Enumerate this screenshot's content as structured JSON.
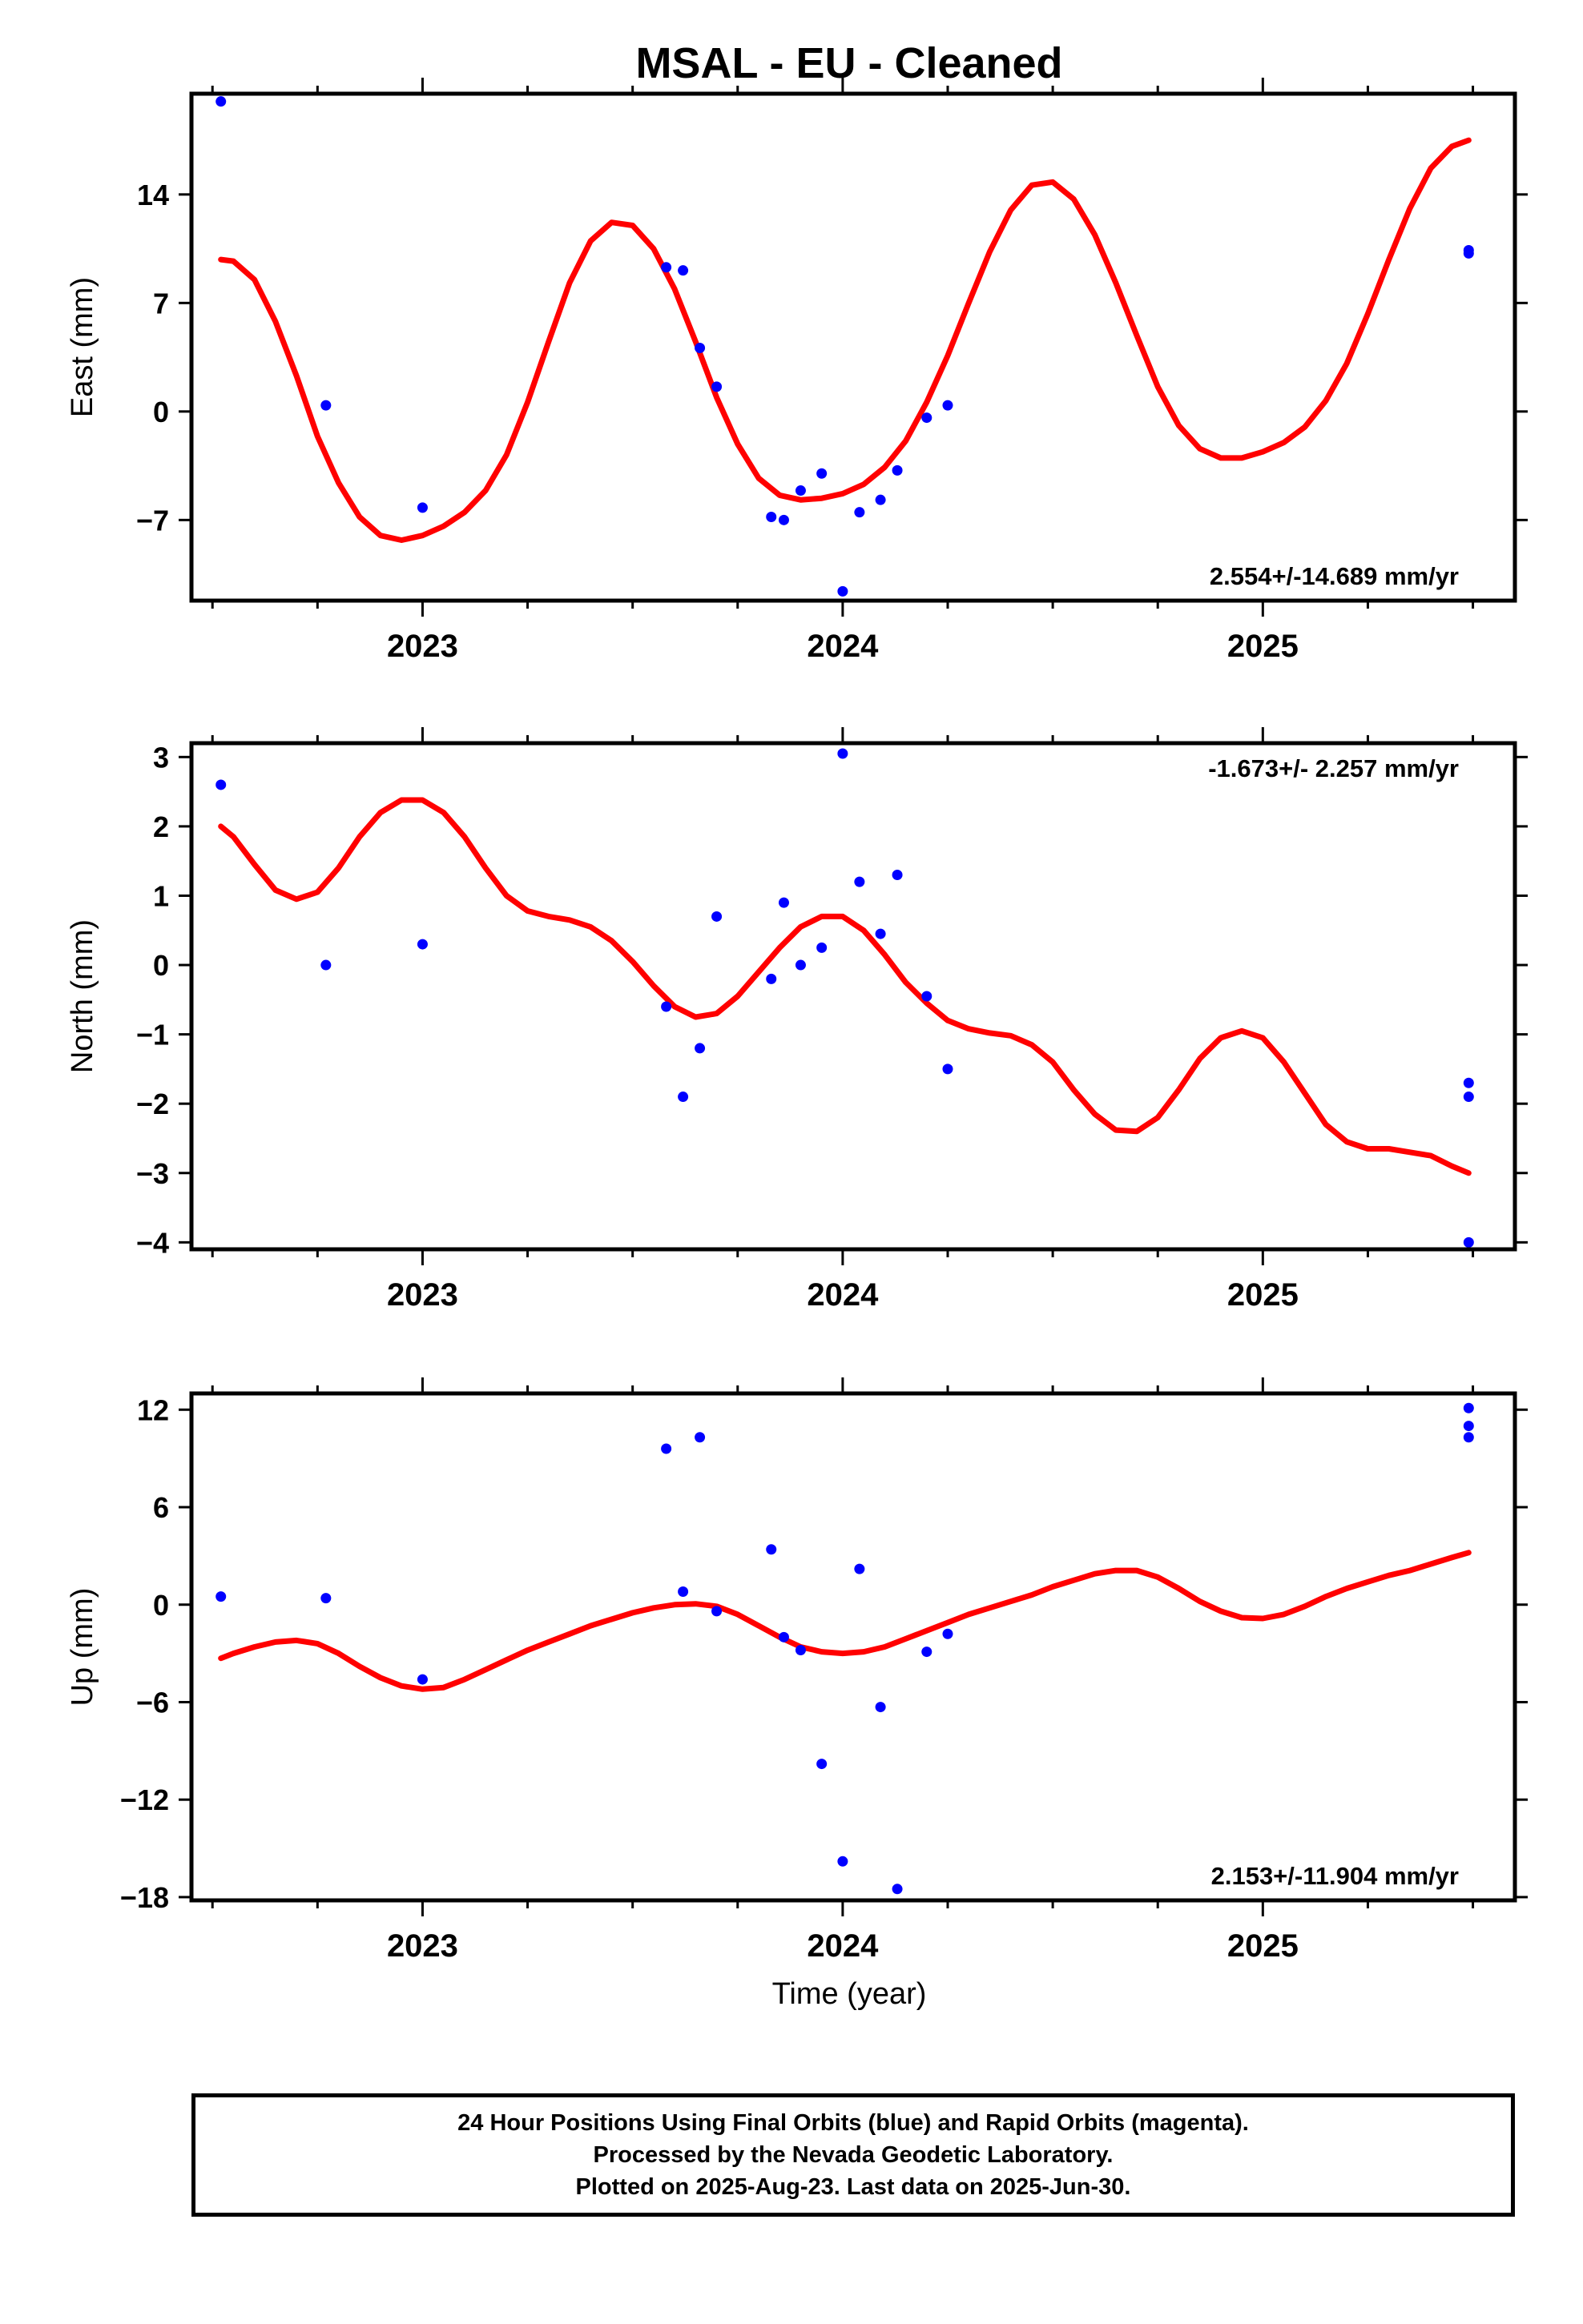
{
  "title": "MSAL  - EU - Cleaned",
  "xlabel": "Time (year)",
  "footer": {
    "line1": "24 Hour Positions Using Final Orbits (blue) and Rapid Orbits (magenta).",
    "line2": "Processed by the Nevada Geodetic Laboratory.",
    "line3": "Plotted on 2025-Aug-23. Last data on 2025-Jun-30."
  },
  "colors": {
    "points": "#0000ff",
    "model": "#ff0000",
    "axes": "#000000"
  },
  "chart_data": [
    {
      "type": "scatter",
      "ylabel": "East (mm)",
      "rate_label": "2.554+/-14.689 mm/yr",
      "xlim": [
        2022.45,
        2025.6
      ],
      "ylim": [
        -12.2,
        20.5
      ],
      "yticks": [
        -7,
        0,
        7,
        14
      ],
      "ytick_labels": [
        "−7",
        "0",
        "7",
        "14"
      ],
      "xticks": [
        2023,
        2024,
        2025
      ],
      "xtick_labels": [
        "2023",
        "2024",
        "2025"
      ],
      "points": [
        [
          2022.52,
          20.0
        ],
        [
          2022.77,
          0.4
        ],
        [
          2023.0,
          -6.2
        ],
        [
          2023.58,
          9.3
        ],
        [
          2023.62,
          9.1
        ],
        [
          2023.66,
          4.1
        ],
        [
          2023.7,
          1.6
        ],
        [
          2023.83,
          -6.8
        ],
        [
          2023.86,
          -7.0
        ],
        [
          2023.9,
          -5.1
        ],
        [
          2023.95,
          -4.0
        ],
        [
          2024.0,
          -11.6
        ],
        [
          2024.04,
          -6.5
        ],
        [
          2024.09,
          -5.7
        ],
        [
          2024.13,
          -3.8
        ],
        [
          2024.2,
          -0.4
        ],
        [
          2024.25,
          0.4
        ],
        [
          2025.49,
          10.2
        ],
        [
          2025.49,
          10.4
        ]
      ],
      "model": [
        [
          2022.52,
          9.8
        ],
        [
          2022.55,
          9.7
        ],
        [
          2022.6,
          8.5
        ],
        [
          2022.65,
          5.8
        ],
        [
          2022.7,
          2.3
        ],
        [
          2022.75,
          -1.6
        ],
        [
          2022.8,
          -4.6
        ],
        [
          2022.85,
          -6.8
        ],
        [
          2022.9,
          -8.0
        ],
        [
          2022.95,
          -8.3
        ],
        [
          2023.0,
          -8.0
        ],
        [
          2023.05,
          -7.4
        ],
        [
          2023.1,
          -6.5
        ],
        [
          2023.15,
          -5.1
        ],
        [
          2023.2,
          -2.8
        ],
        [
          2023.25,
          0.6
        ],
        [
          2023.3,
          4.5
        ],
        [
          2023.35,
          8.3
        ],
        [
          2023.4,
          11.0
        ],
        [
          2023.45,
          12.2
        ],
        [
          2023.5,
          12.0
        ],
        [
          2023.55,
          10.5
        ],
        [
          2023.6,
          7.9
        ],
        [
          2023.65,
          4.5
        ],
        [
          2023.7,
          0.9
        ],
        [
          2023.75,
          -2.1
        ],
        [
          2023.8,
          -4.3
        ],
        [
          2023.85,
          -5.4
        ],
        [
          2023.9,
          -5.7
        ],
        [
          2023.95,
          -5.6
        ],
        [
          2024.0,
          -5.3
        ],
        [
          2024.05,
          -4.7
        ],
        [
          2024.1,
          -3.6
        ],
        [
          2024.15,
          -1.9
        ],
        [
          2024.2,
          0.6
        ],
        [
          2024.25,
          3.6
        ],
        [
          2024.3,
          7.0
        ],
        [
          2024.35,
          10.3
        ],
        [
          2024.4,
          13.0
        ],
        [
          2024.45,
          14.6
        ],
        [
          2024.5,
          14.8
        ],
        [
          2024.55,
          13.7
        ],
        [
          2024.6,
          11.4
        ],
        [
          2024.65,
          8.3
        ],
        [
          2024.7,
          4.9
        ],
        [
          2024.75,
          1.6
        ],
        [
          2024.8,
          -0.9
        ],
        [
          2024.85,
          -2.4
        ],
        [
          2024.9,
          -3.0
        ],
        [
          2024.95,
          -3.0
        ],
        [
          2025.0,
          -2.6
        ],
        [
          2025.05,
          -2.0
        ],
        [
          2025.1,
          -1.0
        ],
        [
          2025.15,
          0.7
        ],
        [
          2025.2,
          3.1
        ],
        [
          2025.25,
          6.3
        ],
        [
          2025.3,
          9.8
        ],
        [
          2025.35,
          13.1
        ],
        [
          2025.4,
          15.7
        ],
        [
          2025.45,
          17.1
        ],
        [
          2025.49,
          17.5
        ]
      ]
    },
    {
      "type": "scatter",
      "ylabel": "North (mm)",
      "rate_label": "-1.673+/- 2.257 mm/yr",
      "xlim": [
        2022.45,
        2025.6
      ],
      "ylim": [
        -4.1,
        3.2
      ],
      "yticks": [
        -4,
        -3,
        -2,
        -1,
        0,
        1,
        2,
        3
      ],
      "ytick_labels": [
        "−4",
        "−3",
        "−2",
        "−1",
        "0",
        "1",
        "2",
        "3"
      ],
      "xticks": [
        2023,
        2024,
        2025
      ],
      "xtick_labels": [
        "2023",
        "2024",
        "2025"
      ],
      "points": [
        [
          2022.52,
          2.6
        ],
        [
          2022.77,
          0.0
        ],
        [
          2023.0,
          0.3
        ],
        [
          2023.58,
          -0.6
        ],
        [
          2023.62,
          -1.9
        ],
        [
          2023.66,
          -1.2
        ],
        [
          2023.7,
          0.7
        ],
        [
          2023.83,
          -0.2
        ],
        [
          2023.86,
          0.9
        ],
        [
          2023.9,
          0.0
        ],
        [
          2023.95,
          0.25
        ],
        [
          2024.0,
          3.05
        ],
        [
          2024.04,
          1.2
        ],
        [
          2024.09,
          0.45
        ],
        [
          2024.13,
          1.3
        ],
        [
          2024.2,
          -0.45
        ],
        [
          2024.25,
          -1.5
        ],
        [
          2025.49,
          -1.7
        ],
        [
          2025.49,
          -1.9
        ],
        [
          2025.49,
          -4.0
        ]
      ],
      "model": [
        [
          2022.52,
          2.0
        ],
        [
          2022.55,
          1.85
        ],
        [
          2022.6,
          1.45
        ],
        [
          2022.65,
          1.08
        ],
        [
          2022.7,
          0.95
        ],
        [
          2022.75,
          1.05
        ],
        [
          2022.8,
          1.4
        ],
        [
          2022.85,
          1.85
        ],
        [
          2022.9,
          2.2
        ],
        [
          2022.95,
          2.38
        ],
        [
          2023.0,
          2.38
        ],
        [
          2023.05,
          2.2
        ],
        [
          2023.1,
          1.85
        ],
        [
          2023.15,
          1.4
        ],
        [
          2023.2,
          1.0
        ],
        [
          2023.25,
          0.78
        ],
        [
          2023.3,
          0.7
        ],
        [
          2023.35,
          0.65
        ],
        [
          2023.4,
          0.55
        ],
        [
          2023.45,
          0.35
        ],
        [
          2023.5,
          0.05
        ],
        [
          2023.55,
          -0.3
        ],
        [
          2023.6,
          -0.6
        ],
        [
          2023.65,
          -0.75
        ],
        [
          2023.7,
          -0.7
        ],
        [
          2023.75,
          -0.45
        ],
        [
          2023.8,
          -0.1
        ],
        [
          2023.85,
          0.25
        ],
        [
          2023.9,
          0.55
        ],
        [
          2023.95,
          0.7
        ],
        [
          2024.0,
          0.7
        ],
        [
          2024.05,
          0.5
        ],
        [
          2024.1,
          0.15
        ],
        [
          2024.15,
          -0.25
        ],
        [
          2024.2,
          -0.55
        ],
        [
          2024.25,
          -0.8
        ],
        [
          2024.3,
          -0.92
        ],
        [
          2024.35,
          -0.98
        ],
        [
          2024.4,
          -1.02
        ],
        [
          2024.45,
          -1.15
        ],
        [
          2024.5,
          -1.4
        ],
        [
          2024.55,
          -1.8
        ],
        [
          2024.6,
          -2.15
        ],
        [
          2024.65,
          -2.38
        ],
        [
          2024.7,
          -2.4
        ],
        [
          2024.75,
          -2.2
        ],
        [
          2024.8,
          -1.8
        ],
        [
          2024.85,
          -1.35
        ],
        [
          2024.9,
          -1.05
        ],
        [
          2024.95,
          -0.95
        ],
        [
          2025.0,
          -1.05
        ],
        [
          2025.05,
          -1.4
        ],
        [
          2025.1,
          -1.85
        ],
        [
          2025.15,
          -2.3
        ],
        [
          2025.2,
          -2.55
        ],
        [
          2025.25,
          -2.65
        ],
        [
          2025.3,
          -2.65
        ],
        [
          2025.35,
          -2.7
        ],
        [
          2025.4,
          -2.75
        ],
        [
          2025.45,
          -2.9
        ],
        [
          2025.49,
          -3.0
        ]
      ]
    },
    {
      "type": "scatter",
      "ylabel": "Up (mm)",
      "rate_label": "2.153+/-11.904 mm/yr",
      "xlim": [
        2022.45,
        2025.6
      ],
      "ylim": [
        -18.2,
        13.0
      ],
      "yticks": [
        -18,
        -12,
        -6,
        0,
        6,
        12
      ],
      "ytick_labels": [
        "−18",
        "−12",
        "−6",
        "0",
        "6",
        "12"
      ],
      "xticks": [
        2023,
        2024,
        2025
      ],
      "xtick_labels": [
        "2023",
        "2024",
        "2025"
      ],
      "points": [
        [
          2022.52,
          0.5
        ],
        [
          2022.77,
          0.4
        ],
        [
          2023.0,
          -4.6
        ],
        [
          2023.58,
          9.6
        ],
        [
          2023.62,
          0.8
        ],
        [
          2023.66,
          10.3
        ],
        [
          2023.7,
          -0.4
        ],
        [
          2023.83,
          3.4
        ],
        [
          2023.86,
          -2.0
        ],
        [
          2023.9,
          -2.8
        ],
        [
          2023.95,
          -9.8
        ],
        [
          2024.0,
          -15.8
        ],
        [
          2024.04,
          2.2
        ],
        [
          2024.09,
          -6.3
        ],
        [
          2024.13,
          -17.5
        ],
        [
          2024.2,
          -2.9
        ],
        [
          2024.25,
          -1.8
        ],
        [
          2025.49,
          12.1
        ],
        [
          2025.49,
          11.0
        ],
        [
          2025.49,
          10.3
        ]
      ],
      "model": [
        [
          2022.52,
          -3.3
        ],
        [
          2022.55,
          -3.0
        ],
        [
          2022.6,
          -2.6
        ],
        [
          2022.65,
          -2.3
        ],
        [
          2022.7,
          -2.2
        ],
        [
          2022.75,
          -2.4
        ],
        [
          2022.8,
          -3.0
        ],
        [
          2022.85,
          -3.8
        ],
        [
          2022.9,
          -4.5
        ],
        [
          2022.95,
          -5.0
        ],
        [
          2023.0,
          -5.2
        ],
        [
          2023.05,
          -5.1
        ],
        [
          2023.1,
          -4.6
        ],
        [
          2023.15,
          -4.0
        ],
        [
          2023.2,
          -3.4
        ],
        [
          2023.25,
          -2.8
        ],
        [
          2023.3,
          -2.3
        ],
        [
          2023.35,
          -1.8
        ],
        [
          2023.4,
          -1.3
        ],
        [
          2023.45,
          -0.9
        ],
        [
          2023.5,
          -0.5
        ],
        [
          2023.55,
          -0.2
        ],
        [
          2023.6,
          0.0
        ],
        [
          2023.65,
          0.05
        ],
        [
          2023.7,
          -0.1
        ],
        [
          2023.75,
          -0.6
        ],
        [
          2023.8,
          -1.3
        ],
        [
          2023.85,
          -2.0
        ],
        [
          2023.9,
          -2.6
        ],
        [
          2023.95,
          -2.9
        ],
        [
          2024.0,
          -3.0
        ],
        [
          2024.05,
          -2.9
        ],
        [
          2024.1,
          -2.6
        ],
        [
          2024.15,
          -2.1
        ],
        [
          2024.2,
          -1.6
        ],
        [
          2024.25,
          -1.1
        ],
        [
          2024.3,
          -0.6
        ],
        [
          2024.35,
          -0.2
        ],
        [
          2024.4,
          0.2
        ],
        [
          2024.45,
          0.6
        ],
        [
          2024.5,
          1.1
        ],
        [
          2024.55,
          1.5
        ],
        [
          2024.6,
          1.9
        ],
        [
          2024.65,
          2.1
        ],
        [
          2024.7,
          2.1
        ],
        [
          2024.75,
          1.7
        ],
        [
          2024.8,
          1.0
        ],
        [
          2024.85,
          0.2
        ],
        [
          2024.9,
          -0.4
        ],
        [
          2024.95,
          -0.8
        ],
        [
          2025.0,
          -0.85
        ],
        [
          2025.05,
          -0.6
        ],
        [
          2025.1,
          -0.1
        ],
        [
          2025.15,
          0.5
        ],
        [
          2025.2,
          1.0
        ],
        [
          2025.25,
          1.4
        ],
        [
          2025.3,
          1.8
        ],
        [
          2025.35,
          2.1
        ],
        [
          2025.4,
          2.5
        ],
        [
          2025.45,
          2.9
        ],
        [
          2025.49,
          3.2
        ]
      ]
    }
  ]
}
